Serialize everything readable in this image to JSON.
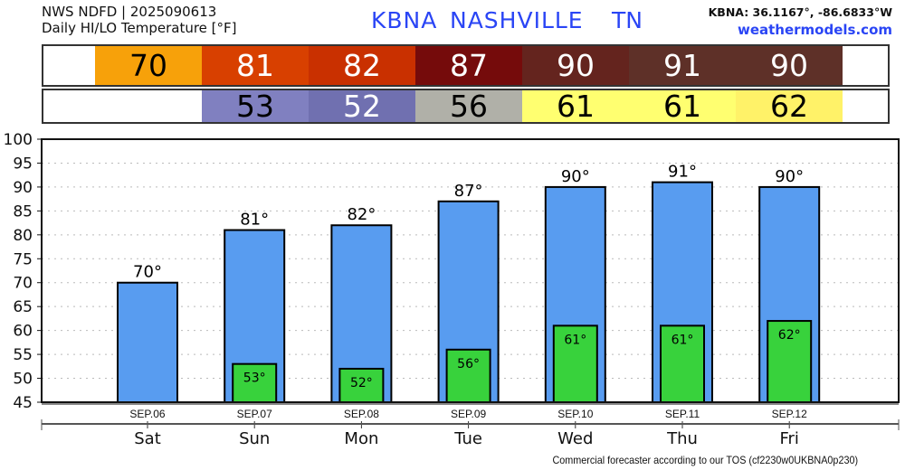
{
  "header": {
    "line1": "NWS NDFD | 2025090613",
    "line2": "Daily HI/LO Temperature [°F]",
    "station": "KBNA",
    "city": "NASHVILLE",
    "state": "TN",
    "coords": "KBNA: 36.1167°, -86.6833°W",
    "site": "weathermodels.com"
  },
  "footer": "Commercial forecaster according to our TOS (cf2230w0UKBNA0p230)",
  "colors": {
    "hi_bar": "#589cf0",
    "lo_bar": "#38d23c"
  },
  "hi_cells": [
    {
      "value": "70",
      "bg": "#f7a10a",
      "fg": "#000"
    },
    {
      "value": "81",
      "bg": "#d84000",
      "fg": "#fff"
    },
    {
      "value": "82",
      "bg": "#c93000",
      "fg": "#fff"
    },
    {
      "value": "87",
      "bg": "#750b0b",
      "fg": "#fff"
    },
    {
      "value": "90",
      "bg": "#64241e",
      "fg": "#fff"
    },
    {
      "value": "91",
      "bg": "#5e3028",
      "fg": "#fff"
    },
    {
      "value": "90",
      "bg": "#5e3028",
      "fg": "#fff"
    }
  ],
  "lo_cells": [
    null,
    {
      "value": "53",
      "bg": "#8080c0",
      "fg": "#000"
    },
    {
      "value": "52",
      "bg": "#7070b0",
      "fg": "#fff"
    },
    {
      "value": "56",
      "bg": "#b0b0a8",
      "fg": "#000"
    },
    {
      "value": "61",
      "bg": "#ffff70",
      "fg": "#000"
    },
    {
      "value": "61",
      "bg": "#ffff70",
      "fg": "#000"
    },
    {
      "value": "62",
      "bg": "#fff268",
      "fg": "#000"
    }
  ],
  "chart_data": {
    "type": "bar",
    "categories": [
      "SEP.06",
      "SEP.07",
      "SEP.08",
      "SEP.09",
      "SEP.10",
      "SEP.11",
      "SEP.12"
    ],
    "days": [
      "Sat",
      "Sun",
      "Mon",
      "Tue",
      "Wed",
      "Thu",
      "Fri"
    ],
    "series": [
      {
        "name": "High",
        "values": [
          70,
          81,
          82,
          87,
          90,
          91,
          90
        ],
        "labels": [
          "70°",
          "81°",
          "82°",
          "87°",
          "90°",
          "91°",
          "90°"
        ]
      },
      {
        "name": "Low",
        "values": [
          null,
          53,
          52,
          56,
          61,
          61,
          62
        ],
        "labels": [
          null,
          "53°",
          "52°",
          "56°",
          "61°",
          "61°",
          "62°"
        ]
      }
    ],
    "ylim": [
      45,
      100
    ],
    "yticks": [
      "45",
      "50",
      "55",
      "60",
      "65",
      "70",
      "75",
      "80",
      "85",
      "90",
      "95",
      "100"
    ],
    "grid": true
  }
}
